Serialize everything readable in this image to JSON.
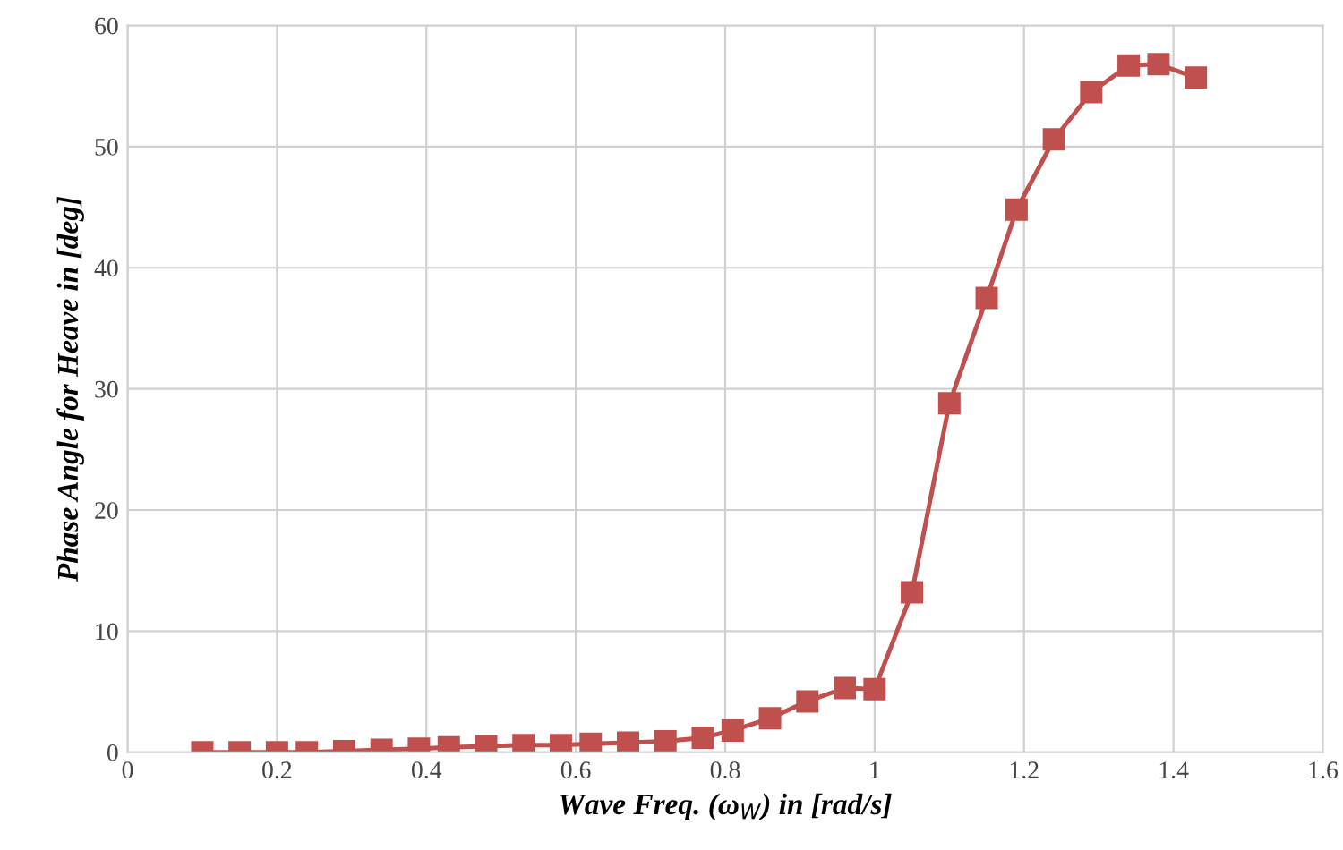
{
  "chart_data": {
    "type": "line",
    "xlabel": "Wave Freq. (ω$_{W}$) in [rad/s]",
    "ylabel": "Phase Angle for Heave in [deg]",
    "x": [
      0.1,
      0.15,
      0.2,
      0.24,
      0.29,
      0.34,
      0.39,
      0.43,
      0.48,
      0.53,
      0.58,
      0.62,
      0.67,
      0.72,
      0.77,
      0.81,
      0.86,
      0.91,
      0.96,
      1.0,
      1.05,
      1.1,
      1.15,
      1.19,
      1.24,
      1.29,
      1.34,
      1.38,
      1.43
    ],
    "series": [
      {
        "color": "#c0504d",
        "values": [
          0,
          0,
          0,
          0,
          0.1,
          0.2,
          0.3,
          0.4,
          0.5,
          0.6,
          0.6,
          0.7,
          0.8,
          0.9,
          1.2,
          1.8,
          2.8,
          4.2,
          5.3,
          5.2,
          13.2,
          28.8,
          37.5,
          44.8,
          50.6,
          54.5,
          56.7,
          56.8,
          55.7
        ]
      }
    ],
    "xlim": [
      0,
      1.6
    ],
    "xticks": [
      0,
      0.2,
      0.4,
      0.6,
      0.8,
      1,
      1.2,
      1.4,
      1.6
    ],
    "ylim": [
      0,
      60
    ],
    "yticks": [
      0,
      10,
      20,
      30,
      40,
      50,
      60
    ],
    "grid": true,
    "marker": "square",
    "line_style": "solid"
  }
}
